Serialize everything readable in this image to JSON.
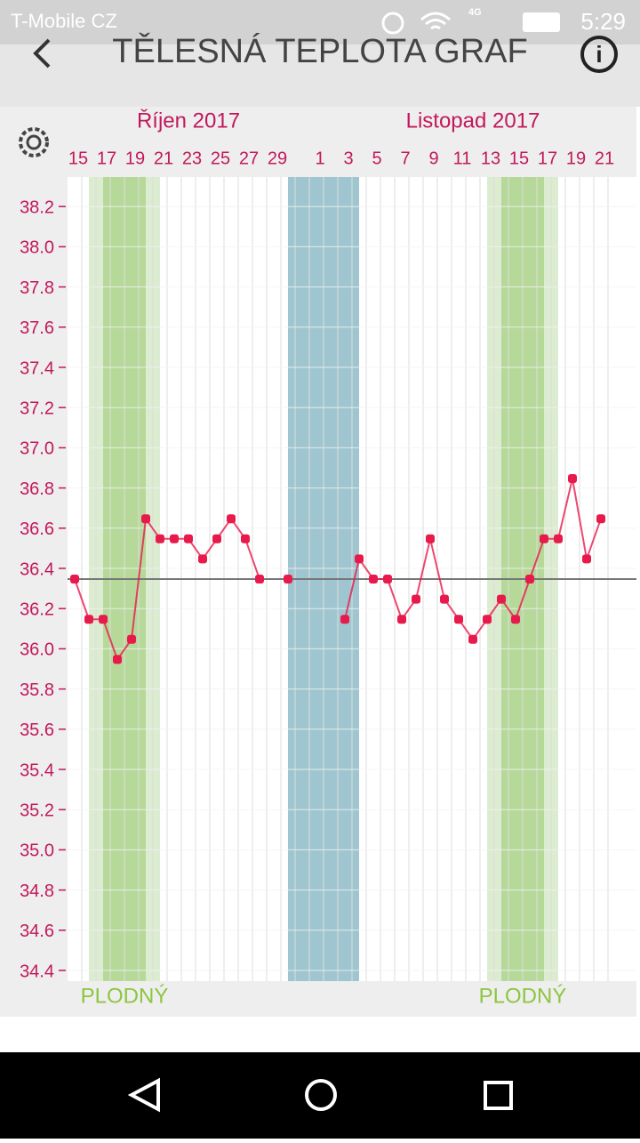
{
  "status_bar": {
    "carrier": "T-Mobile CZ",
    "network": "4G",
    "time": "5:29"
  },
  "header": {
    "title": "TĚLESNÁ TEPLOTA GRAF"
  },
  "chart_data": {
    "type": "line",
    "months": [
      {
        "label": "Říjen 2017",
        "start": 0
      },
      {
        "label": "Listopad 2017",
        "start": 17
      }
    ],
    "categories": [
      "15",
      null,
      "17",
      null,
      "19",
      null,
      "21",
      null,
      "23",
      null,
      "25",
      null,
      "27",
      null,
      "29",
      null,
      null,
      "1",
      null,
      "3",
      null,
      "5",
      null,
      "7",
      null,
      "9",
      null,
      "11",
      null,
      "13",
      null,
      "15",
      null,
      "17",
      null,
      "19",
      null,
      "21"
    ],
    "series": [
      {
        "name": "teplota",
        "color": "#e8194b",
        "values": [
          36.4,
          36.2,
          36.2,
          36.0,
          36.1,
          36.7,
          36.6,
          36.6,
          36.6,
          36.5,
          36.6,
          36.7,
          36.6,
          36.4,
          null,
          36.4,
          null,
          null,
          null,
          36.2,
          36.5,
          36.4,
          36.4,
          36.2,
          36.3,
          36.6,
          36.3,
          36.2,
          36.1,
          36.2,
          36.3,
          36.2,
          36.4,
          36.6,
          36.6,
          36.9,
          36.5,
          36.7
        ]
      }
    ],
    "ylim": [
      34.4,
      38.4
    ],
    "yticks": [
      34.4,
      34.6,
      34.8,
      {
        "value": 35,
        "label": "35.0"
      },
      35.2,
      35.4,
      35.6,
      35.8,
      {
        "value": 36,
        "label": "36.0"
      },
      36.2,
      36.4,
      36.6,
      36.8,
      {
        "value": 37,
        "label": "37.0"
      },
      37.2,
      37.4,
      37.6,
      37.8,
      {
        "value": 38,
        "label": "38.0"
      },
      38.2
    ],
    "reference_line": 36.4,
    "bands": [
      {
        "kind": "fertile",
        "start": 1,
        "end": 5,
        "peak_start": 2,
        "peak_end": 4,
        "label": "PLODNÝ"
      },
      {
        "kind": "period",
        "start": 15,
        "end": 19
      },
      {
        "kind": "fertile",
        "start": 29,
        "end": 33,
        "peak_start": 30,
        "peak_end": 32,
        "label": "PLODNÝ"
      }
    ]
  }
}
